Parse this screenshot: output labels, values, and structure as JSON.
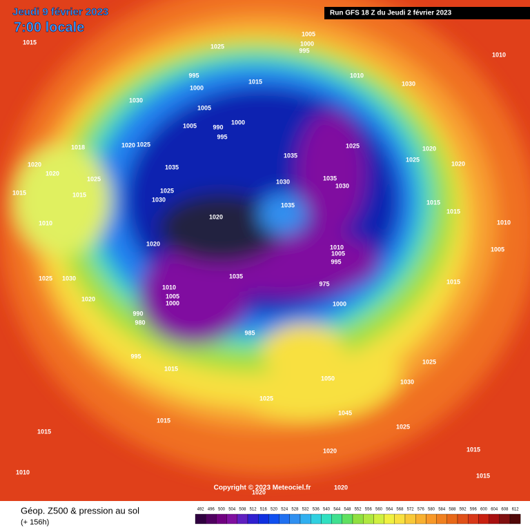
{
  "header": {
    "date": "Jeudi 9 février 2023",
    "time": "7:00 locale",
    "run": "Run GFS 18 Z du Jeudi 2 février 2023"
  },
  "copyright": "Copyright © 2023 Meteociel.fr",
  "footer": {
    "title": "Géop. Z500 & pression au sol",
    "lead": "(+ 156h)"
  },
  "colorbar": {
    "labels": [
      492,
      496,
      500,
      504,
      508,
      512,
      516,
      520,
      524,
      528,
      532,
      536,
      540,
      544,
      548,
      552,
      556,
      560,
      564,
      568,
      572,
      576,
      580,
      584,
      588,
      592,
      596,
      600,
      604,
      608,
      612
    ]
  },
  "isobar_labels": [
    1015,
    1025,
    1005,
    1000,
    995,
    995,
    1000,
    1015,
    1010,
    1030,
    1010,
    1030,
    1005,
    1005,
    990,
    995,
    1000,
    1018,
    1020,
    1025,
    1020,
    1020,
    1025,
    1015,
    1035,
    1025,
    1030,
    1035,
    1030,
    1035,
    1030,
    1025,
    1020,
    1025,
    1020,
    1035,
    1020,
    1015,
    1010,
    1015,
    1015,
    1020,
    1010,
    1005,
    995,
    1025,
    1030,
    1010,
    1005,
    1000,
    1035,
    1020,
    990,
    980,
    985,
    995,
    1015,
    975,
    1000,
    1015,
    1025,
    1050,
    1030,
    1025,
    1045,
    1025,
    1015,
    1015,
    1020,
    1015,
    1015,
    1010,
    1020,
    1020,
    1010,
    1005
  ]
}
